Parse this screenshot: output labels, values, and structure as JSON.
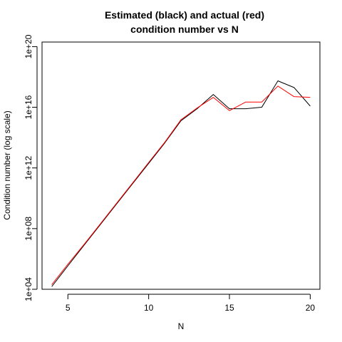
{
  "chart_data": {
    "type": "line",
    "title_lines": [
      "Estimated (black) and actual (red)",
      "condition number vs N"
    ],
    "xlabel": "N",
    "ylabel": "Condition number (log scale)",
    "x": [
      4,
      5,
      6,
      7,
      8,
      9,
      10,
      11,
      12,
      13,
      14,
      15,
      16,
      17,
      18,
      19,
      20
    ],
    "xlim": [
      3.4,
      20.6
    ],
    "ylim": [
      10000.0,
      2e+20
    ],
    "y_scale": "log",
    "x_ticks": [
      5,
      10,
      15,
      20
    ],
    "y_ticks": [
      10000.0,
      100000000.0,
      1000000000000.0,
      1e+16,
      1e+20
    ],
    "x_tick_labels": [
      "5",
      "10",
      "15",
      "20"
    ],
    "y_tick_labels": [
      "1e+04",
      "1e+08",
      "1e+12",
      "1e+16",
      "1e+20"
    ],
    "series": [
      {
        "color": "#000000",
        "values": [
          15000.0,
          350000.0,
          8000000.0,
          180000000.0,
          4000000000.0,
          90000000000.0,
          2000000000000.0,
          45000000000000.0,
          1300000000000000.0,
          8000000000000000.0,
          7e+16,
          8000000000000000.0,
          8000000000000000.0,
          1e+16,
          5.5e+17,
          2e+17,
          1.2e+16
        ]
      },
      {
        "color": "#ff0000",
        "values": [
          20000.0,
          450000.0,
          9000000.0,
          200000000.0,
          4500000000.0,
          100000000000.0,
          2300000000000.0,
          50000000000000.0,
          1500000000000000.0,
          9000000000000000.0,
          4.5e+16,
          6000000000000000.0,
          2.2e+16,
          2.2e+16,
          2.5e+17,
          5e+16,
          4.5e+16
        ]
      }
    ]
  }
}
